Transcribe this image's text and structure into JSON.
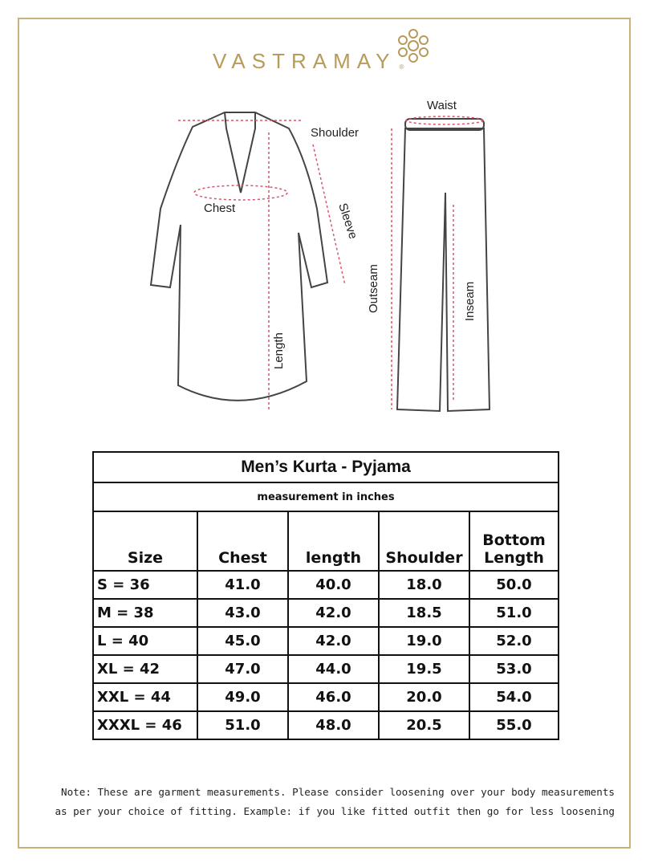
{
  "brand": {
    "name": "VASTRAMAY",
    "registered": "®",
    "accent": "#b89a5a"
  },
  "diagram": {
    "labels": {
      "shoulder": "Shoulder",
      "chest": "Chest",
      "sleeve": "Sleeve",
      "length": "Length",
      "waist": "Waist",
      "outseam": "Outseam",
      "inseam": "Inseam"
    }
  },
  "table": {
    "title": "Men’s Kurta - Pyjama",
    "subtitle": "measurement in inches",
    "headers": [
      "Size",
      "Chest",
      "length",
      "Shoulder",
      "Bottom Length"
    ],
    "rows": [
      [
        "S = 36",
        "41.0",
        "40.0",
        "18.0",
        "50.0"
      ],
      [
        "M = 38",
        "43.0",
        "42.0",
        "18.5",
        "51.0"
      ],
      [
        "L = 40",
        "45.0",
        "42.0",
        "19.0",
        "52.0"
      ],
      [
        "XL = 42",
        "47.0",
        "44.0",
        "19.5",
        "53.0"
      ],
      [
        "XXL = 44",
        "49.0",
        "46.0",
        "20.0",
        "54.0"
      ],
      [
        "XXXL = 46",
        "51.0",
        "48.0",
        "20.5",
        "55.0"
      ]
    ]
  },
  "note": {
    "line1": "Note: These are garment measurements. Please consider loosening over your body measurements",
    "line2": "as per your choice of fitting. Example: if you like fitted outfit then go for less loosening"
  }
}
